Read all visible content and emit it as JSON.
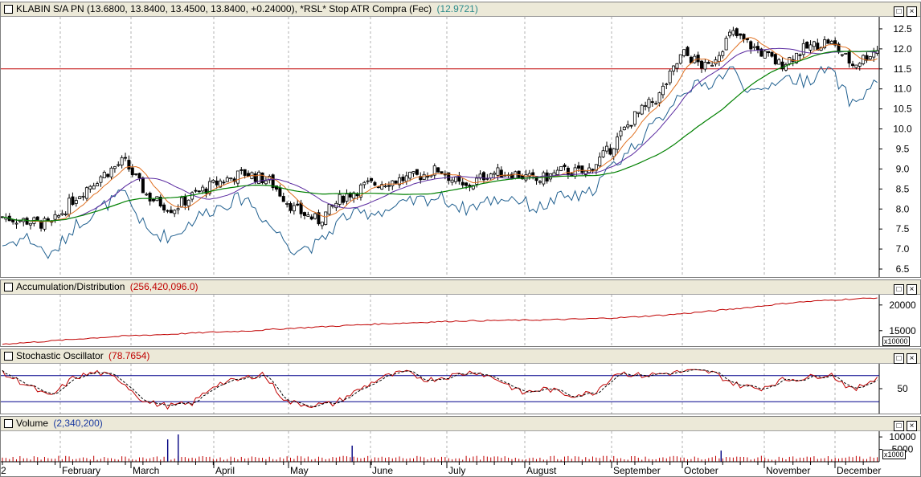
{
  "panes": {
    "price": {
      "title": "KLABIN S/A PN",
      "ohlc": "(13.6800, 13.8400, 13.4500, 13.8400, +0.24000)",
      "indicator": "*RSL* Stop ATR Compra (Fec)",
      "indicator_value": "(12.9721)"
    },
    "ad": {
      "title": "Accumulation/Distribution",
      "value": "(256,420,096.0)",
      "scale": "x10000"
    },
    "stoch": {
      "title": "Stochastic Oscillator",
      "value": "(78.7654)"
    },
    "volume": {
      "title": "Volume",
      "value": "(2,340,200)",
      "scale": "x1000"
    }
  },
  "window_buttons": {
    "restore": "□",
    "close": "×"
  },
  "colors": {
    "candle_up": "#ffffff",
    "candle_down": "#000000",
    "ma_short": "#e07020",
    "ma_mid": "#5a2aa0",
    "ma_long": "#008000",
    "stop_line": "#1f5f8f",
    "hline": "#c00000",
    "ad_line": "#c00000",
    "stoch_k": "#c00000",
    "stoch_d": "#000000",
    "volume": "#c00000",
    "volume_spike": "#000080"
  },
  "chart_data": [
    {
      "type": "candlestick",
      "name_ref": "price",
      "ylim": [
        6.3,
        12.8
      ],
      "yticks": [
        "6.5",
        "7.0",
        "7.5",
        "8.0",
        "8.5",
        "9.0",
        "9.5",
        "10.0",
        "10.5",
        "11.0",
        "11.5",
        "12.0",
        "12.5"
      ],
      "hline": 11.5,
      "months": [
        "February",
        "March",
        "April",
        "May",
        "June",
        "July",
        "August",
        "September",
        "October",
        "November",
        "December"
      ],
      "leading_tick_label": "2",
      "close_anchors": [
        7.8,
        7.7,
        7.6,
        8.3,
        8.8,
        9.2,
        8.3,
        8.0,
        8.4,
        8.7,
        8.9,
        8.7,
        8.0,
        7.7,
        8.3,
        8.6,
        8.7,
        8.8,
        9.0,
        8.5,
        8.9,
        8.9,
        8.7,
        8.95,
        8.9,
        9.5,
        10.3,
        10.8,
        11.9,
        11.5,
        12.4,
        12.0,
        11.6,
        12.0,
        12.2,
        11.6,
        12.0
      ],
      "stop_anchors": [
        7.1,
        7.3,
        6.8,
        7.6,
        8.0,
        8.4,
        7.4,
        7.3,
        7.8,
        8.1,
        8.3,
        7.6,
        7.0,
        7.1,
        7.8,
        7.9,
        8.0,
        8.2,
        8.3,
        8.0,
        8.2,
        8.3,
        8.0,
        8.3,
        8.3,
        9.0,
        9.6,
        10.2,
        11.0,
        11.1,
        11.5,
        10.8,
        11.3,
        11.2,
        11.5,
        10.6,
        11.2
      ]
    },
    {
      "type": "line",
      "name_ref": "ad",
      "ylim": [
        12000,
        22000
      ],
      "yticks": [
        "15000",
        "20000"
      ],
      "anchors": [
        12400,
        12900,
        13500,
        14000,
        14300,
        14700,
        15000,
        15500,
        15900,
        16300,
        16600,
        16900,
        17000,
        17100,
        17300,
        17600,
        18100,
        18800,
        19600,
        20500,
        21000,
        21400
      ]
    },
    {
      "type": "line",
      "name_ref": "stoch",
      "ylim": [
        0,
        100
      ],
      "yticks": [
        "50"
      ],
      "levels": [
        80,
        20
      ],
      "anchors": [
        85,
        60,
        30,
        75,
        88,
        70,
        20,
        10,
        15,
        60,
        70,
        85,
        20,
        12,
        15,
        45,
        75,
        88,
        70,
        80,
        90,
        70,
        40,
        50,
        35,
        40,
        88,
        80,
        85,
        90,
        88,
        60,
        50,
        70,
        75,
        85,
        45,
        78
      ]
    },
    {
      "type": "bar",
      "name_ref": "volume",
      "ylim": [
        0,
        11000
      ],
      "yticks": [
        "10000",
        "5000"
      ],
      "spikes": [
        {
          "pos": 0.19,
          "value": 9000
        },
        {
          "pos": 0.202,
          "value": 11000
        },
        {
          "pos": 0.4,
          "value": 6500
        },
        {
          "pos": 0.82,
          "value": 4500
        }
      ]
    }
  ]
}
